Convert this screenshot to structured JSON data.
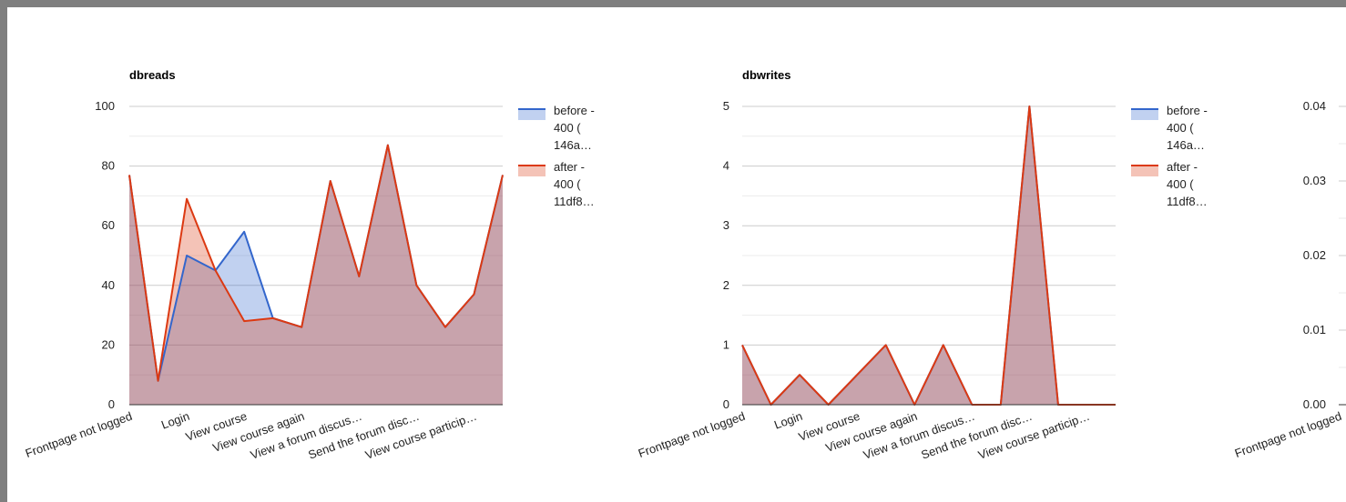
{
  "colors": {
    "before": "#3366cc",
    "after": "#dc3912"
  },
  "chart_data": [
    {
      "type": "area",
      "title": "dbreads",
      "categories": [
        "Frontpage not logged",
        "",
        "Login",
        "",
        "View course",
        "",
        "View course again",
        "",
        "View a forum discus…",
        "",
        "Send the forum disc…",
        "",
        "View course particip…",
        ""
      ],
      "series": [
        {
          "name": "before - 400 ( 146a…",
          "values": [
            77,
            8,
            50,
            45,
            58,
            29,
            26,
            75,
            43,
            87,
            40,
            26,
            37,
            77
          ]
        },
        {
          "name": "after - 400 ( 11df8…",
          "values": [
            77,
            8,
            69,
            45,
            28,
            29,
            26,
            75,
            43,
            87,
            40,
            26,
            37,
            77
          ]
        }
      ],
      "yticks": [
        "0",
        "20",
        "40",
        "60",
        "80",
        "100"
      ],
      "ylim": [
        0,
        100
      ],
      "legend": "right",
      "grid": true
    },
    {
      "type": "area",
      "title": "dbwrites",
      "categories": [
        "Frontpage not logged",
        "",
        "Login",
        "",
        "View course",
        "",
        "View course again",
        "",
        "View a forum discus…",
        "",
        "Send the forum disc…",
        "",
        "View course particip…",
        ""
      ],
      "series": [
        {
          "name": "before - 400 ( 146a…",
          "values": [
            1,
            0,
            0.5,
            0,
            0.5,
            1,
            0,
            1,
            0,
            0,
            5,
            0,
            0,
            0
          ]
        },
        {
          "name": "after - 400 ( 11df8…",
          "values": [
            1,
            0,
            0.5,
            0,
            0.5,
            1,
            0,
            1,
            0,
            0,
            5,
            0,
            0,
            0
          ]
        }
      ],
      "yticks": [
        "0",
        "1",
        "2",
        "3",
        "4",
        "5"
      ],
      "ylim": [
        0,
        5
      ],
      "legend": "right",
      "grid": true
    },
    {
      "type": "area",
      "title": "",
      "categories": [
        "Frontpage not logged"
      ],
      "series": [],
      "yticks": [
        "0.00",
        "0.01",
        "0.02",
        "0.03",
        "0.04"
      ],
      "ylim": [
        0,
        0.04
      ],
      "legend": "right",
      "grid": true
    }
  ]
}
